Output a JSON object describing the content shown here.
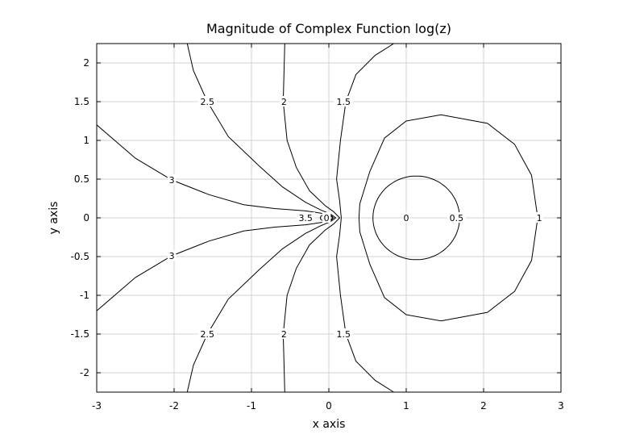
{
  "chart_data": {
    "type": "contour",
    "title": "Magnitude of Complex Function log(z)",
    "xlabel": "x axis",
    "ylabel": "y axis",
    "xlim": [
      -3,
      3
    ],
    "ylim": [
      -2.25,
      2.25
    ],
    "grid": true,
    "x_ticks": [
      -3,
      -2,
      -1,
      0,
      1,
      2,
      3
    ],
    "x_tick_labels": [
      "-3",
      "-2",
      "-1",
      "0",
      "1",
      "2",
      "3"
    ],
    "y_ticks": [
      -2,
      -1.5,
      -1,
      -0.5,
      0,
      0.5,
      1,
      1.5,
      2
    ],
    "y_tick_labels": [
      "-2",
      "-1.5",
      "-1",
      "-0.5",
      "0",
      "0.5",
      "1",
      "1.5",
      "2"
    ],
    "contour_levels": [
      0,
      0.5,
      1,
      1.5,
      2,
      2.5,
      3,
      3.5
    ],
    "contour_labels": [
      {
        "text": "0",
        "x": 1.0,
        "y": 0
      },
      {
        "text": "0.5",
        "x": 1.65,
        "y": 0
      },
      {
        "text": "1",
        "x": 2.72,
        "y": 0
      },
      {
        "text": "1.5",
        "x": 0.19,
        "y": 1.5
      },
      {
        "text": "1.5",
        "x": 0.19,
        "y": -1.5
      },
      {
        "text": "2",
        "x": -0.58,
        "y": 1.5
      },
      {
        "text": "2",
        "x": -0.58,
        "y": -1.5
      },
      {
        "text": "2.5",
        "x": -1.57,
        "y": 1.5
      },
      {
        "text": "2.5",
        "x": -1.57,
        "y": -1.5
      },
      {
        "text": "3",
        "x": -2.03,
        "y": 0.49
      },
      {
        "text": "3",
        "x": -2.03,
        "y": -0.49
      },
      {
        "text": "3.5",
        "x": -0.3,
        "y": 0
      },
      {
        "text": "0",
        "x": -0.03,
        "y": 0
      }
    ]
  }
}
